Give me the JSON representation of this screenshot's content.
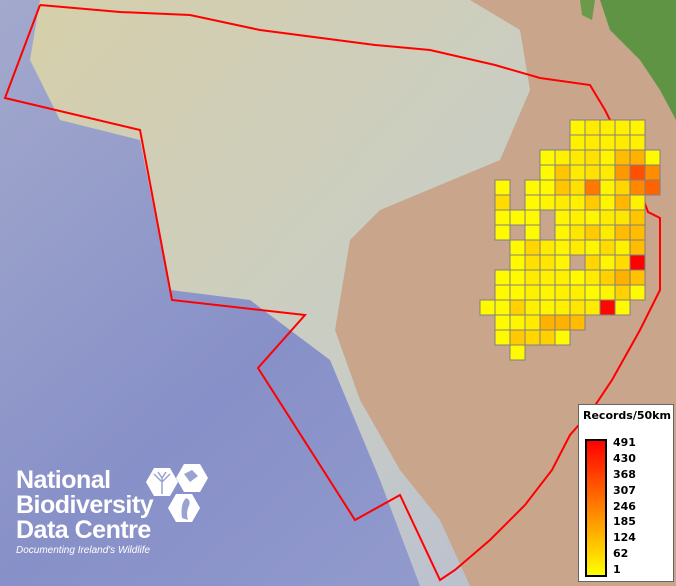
{
  "legend": {
    "title": "Records/50km",
    "labels": [
      "491",
      "430",
      "368",
      "307",
      "246",
      "185",
      "124",
      "62",
      "1"
    ],
    "min": 1,
    "max": 491,
    "colors": {
      "low": "#ffff00",
      "mid": "#ff8000",
      "high": "#ff0000"
    }
  },
  "logo": {
    "line1": "National",
    "line2": "Biodiversity",
    "line3": "Data Centre",
    "tagline": "Documenting Ireland's Wildlife"
  },
  "colors": {
    "boundary": "#ff0000",
    "grid_border": "#808080",
    "ocean": "#8a93c8",
    "shelf": "#d8d2b0",
    "land": "#caa48a",
    "vegetation": "#5a9040"
  },
  "grid_records": [
    [
      null,
      null,
      null,
      null,
      null,
      null,
      20,
      40,
      30,
      30,
      20,
      null
    ],
    [
      null,
      null,
      null,
      null,
      null,
      null,
      30,
      40,
      30,
      40,
      30,
      null
    ],
    [
      null,
      null,
      null,
      null,
      10,
      30,
      40,
      60,
      20,
      130,
      150,
      10
    ],
    [
      null,
      null,
      null,
      null,
      10,
      110,
      40,
      60,
      40,
      200,
      340,
      220
    ],
    [
      null,
      10,
      null,
      10,
      10,
      110,
      60,
      260,
      20,
      80,
      230,
      300
    ],
    [
      null,
      70,
      null,
      10,
      20,
      40,
      30,
      100,
      20,
      140,
      30,
      null
    ],
    [
      null,
      10,
      10,
      10,
      null,
      20,
      30,
      20,
      40,
      50,
      110,
      null
    ],
    [
      null,
      10,
      null,
      10,
      null,
      20,
      50,
      100,
      40,
      130,
      130,
      null
    ],
    [
      null,
      null,
      10,
      80,
      40,
      20,
      40,
      20,
      70,
      30,
      130,
      null
    ],
    [
      null,
      null,
      10,
      60,
      50,
      20,
      null,
      80,
      20,
      70,
      491,
      null
    ],
    [
      null,
      10,
      10,
      40,
      30,
      30,
      10,
      40,
      90,
      150,
      120,
      null
    ],
    [
      null,
      10,
      10,
      30,
      20,
      30,
      30,
      10,
      20,
      90,
      10,
      null
    ],
    [
      10,
      10,
      90,
      30,
      20,
      30,
      50,
      40,
      480,
      10,
      null,
      null
    ],
    [
      null,
      10,
      20,
      40,
      150,
      150,
      130,
      null,
      null,
      null,
      null,
      null
    ],
    [
      null,
      10,
      100,
      80,
      90,
      10,
      null,
      null,
      null,
      null,
      null,
      null
    ],
    [
      null,
      null,
      10,
      null,
      null,
      null,
      null,
      null,
      null,
      null,
      null,
      null
    ]
  ]
}
